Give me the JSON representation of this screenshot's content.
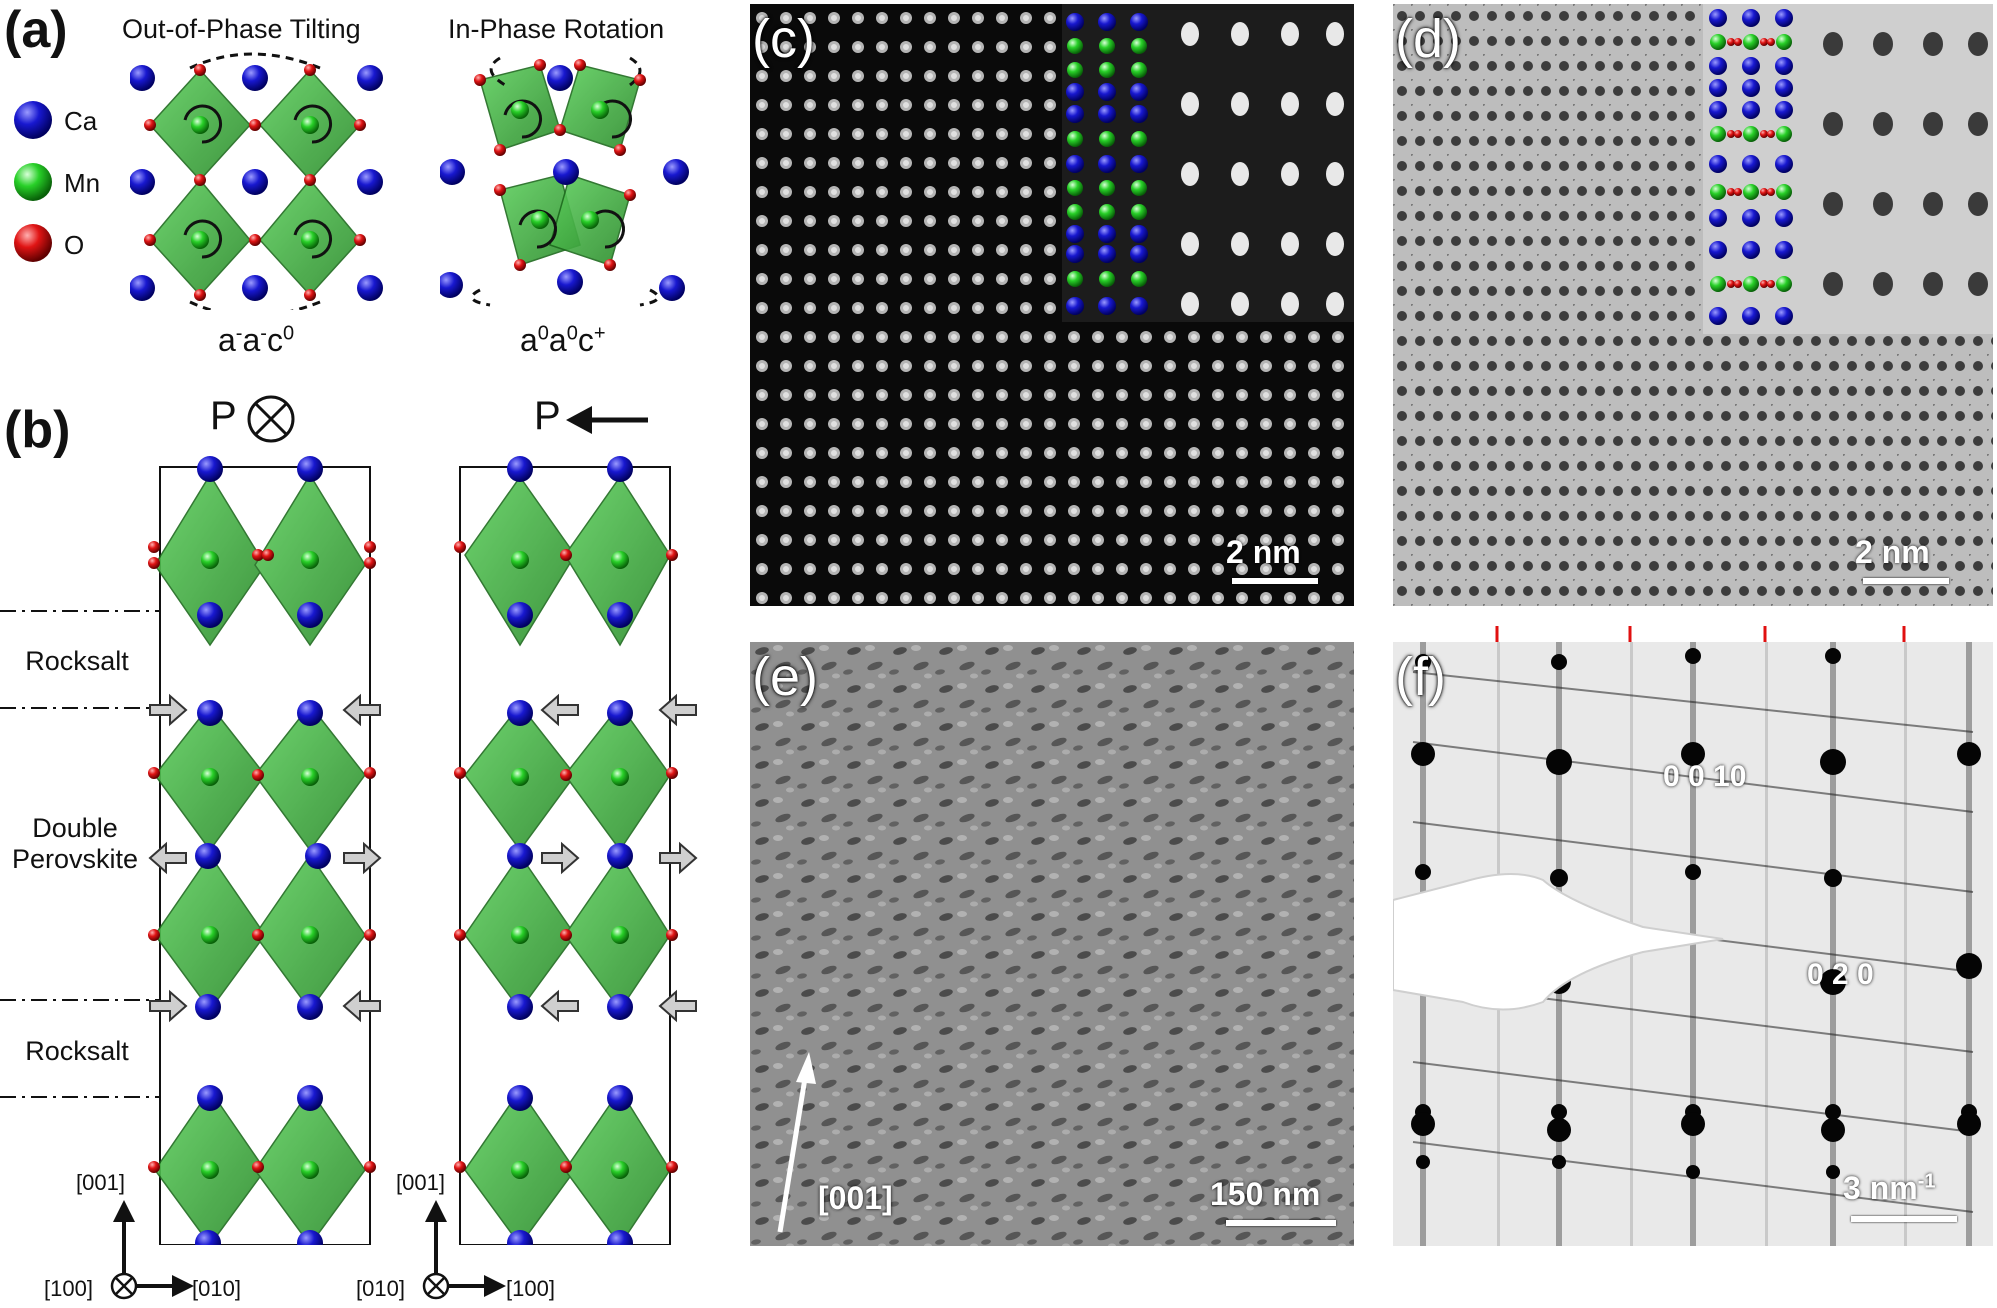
{
  "panels": {
    "a": {
      "letter": "(a)",
      "legend": [
        {
          "label": "Ca",
          "color": "#1010c8"
        },
        {
          "label": "Mn",
          "color": "#20d020"
        },
        {
          "label": "O",
          "color": "#e01010"
        }
      ],
      "left_title": "Out-of-Phase Tilting",
      "right_title": "In-Phase Rotation",
      "left_glazer": {
        "base": "a",
        "sup1": "-",
        "mid": "a",
        "sup2": "-",
        "end": "c",
        "sup3": "0"
      },
      "right_glazer": {
        "base": "a",
        "sup1": "0",
        "mid": "a",
        "sup2": "0",
        "end": "c",
        "sup3": "+"
      }
    },
    "b": {
      "letter": "(b)",
      "p_left": "P",
      "p_right": "P",
      "layers": {
        "rocksalt_top": "Rocksalt",
        "double_perovskite": "Double Perovskite",
        "rocksalt_bottom": "Rocksalt"
      },
      "left_axes": {
        "up": "[001]",
        "view": "[100]",
        "right": "[010]"
      },
      "right_axes": {
        "up": "[001]",
        "view": "[010]",
        "right": "[100]"
      }
    },
    "c": {
      "letter": "(c)",
      "scalebar": "2 nm"
    },
    "d": {
      "letter": "(d)",
      "scalebar": "2 nm"
    },
    "e": {
      "letter": "(e)",
      "scalebar": "150 nm",
      "direction": "[001]"
    },
    "f": {
      "letter": "(f)",
      "scalebar": "3 nm",
      "scalebar_sup": "-1",
      "reflection_1": "0 0 10",
      "reflection_2": "0 2 0",
      "marker_color": "#e01010"
    }
  }
}
